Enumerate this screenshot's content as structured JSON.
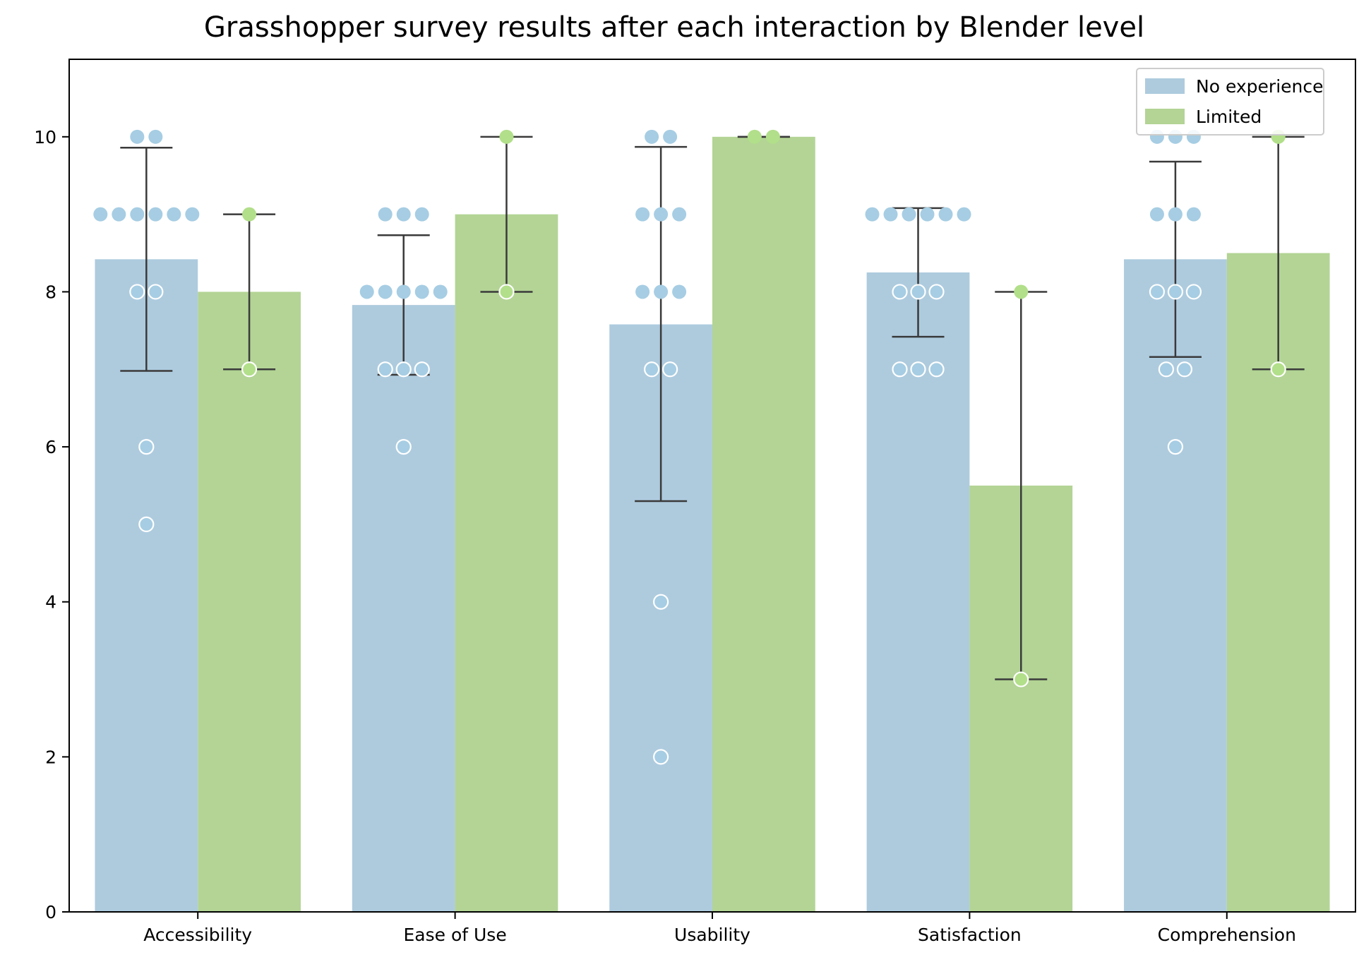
{
  "chart_data": {
    "type": "bar",
    "title": "Grasshopper survey results after each interaction by Blender level",
    "xlabel": "",
    "ylabel": "",
    "ylim": [
      0,
      11
    ],
    "yticks": [
      0,
      2,
      4,
      6,
      8,
      10
    ],
    "grid": false,
    "legend_position": "top-right",
    "categories": [
      "Accessibility",
      "Ease of Use",
      "Usability",
      "Satisfaction",
      "Comprehension"
    ],
    "series": [
      {
        "name": "No experience",
        "color": "#aecbde",
        "point_color": "#a6cde3",
        "values": [
          8.42,
          7.83,
          7.58,
          8.25,
          8.42
        ],
        "error_low": [
          6.98,
          6.93,
          5.3,
          7.42,
          7.16
        ],
        "error_high": [
          9.86,
          8.73,
          9.87,
          9.08,
          9.68
        ],
        "points": [
          [
            10,
            10,
            9,
            9,
            9,
            9,
            9,
            9,
            8,
            8,
            6,
            5
          ],
          [
            9,
            9,
            9,
            8,
            8,
            8,
            8,
            8,
            7,
            7,
            7,
            6
          ],
          [
            10,
            10,
            9,
            9,
            9,
            8,
            8,
            8,
            7,
            7,
            4,
            2
          ],
          [
            9,
            9,
            9,
            9,
            9,
            9,
            8,
            8,
            8,
            7,
            7,
            7
          ],
          [
            10,
            10,
            10,
            9,
            9,
            9,
            8,
            8,
            8,
            7,
            7,
            6
          ]
        ]
      },
      {
        "name": "Limited",
        "color": "#b3d495",
        "point_color": "#b2df8a",
        "values": [
          8,
          9,
          10,
          5.5,
          8.5
        ],
        "error_low": [
          7,
          8,
          10,
          3,
          7
        ],
        "error_high": [
          9,
          10,
          10,
          8,
          10
        ],
        "points": [
          [
            9,
            7
          ],
          [
            10,
            8
          ],
          [
            10,
            10
          ],
          [
            8,
            3
          ],
          [
            10,
            7
          ]
        ]
      }
    ]
  }
}
